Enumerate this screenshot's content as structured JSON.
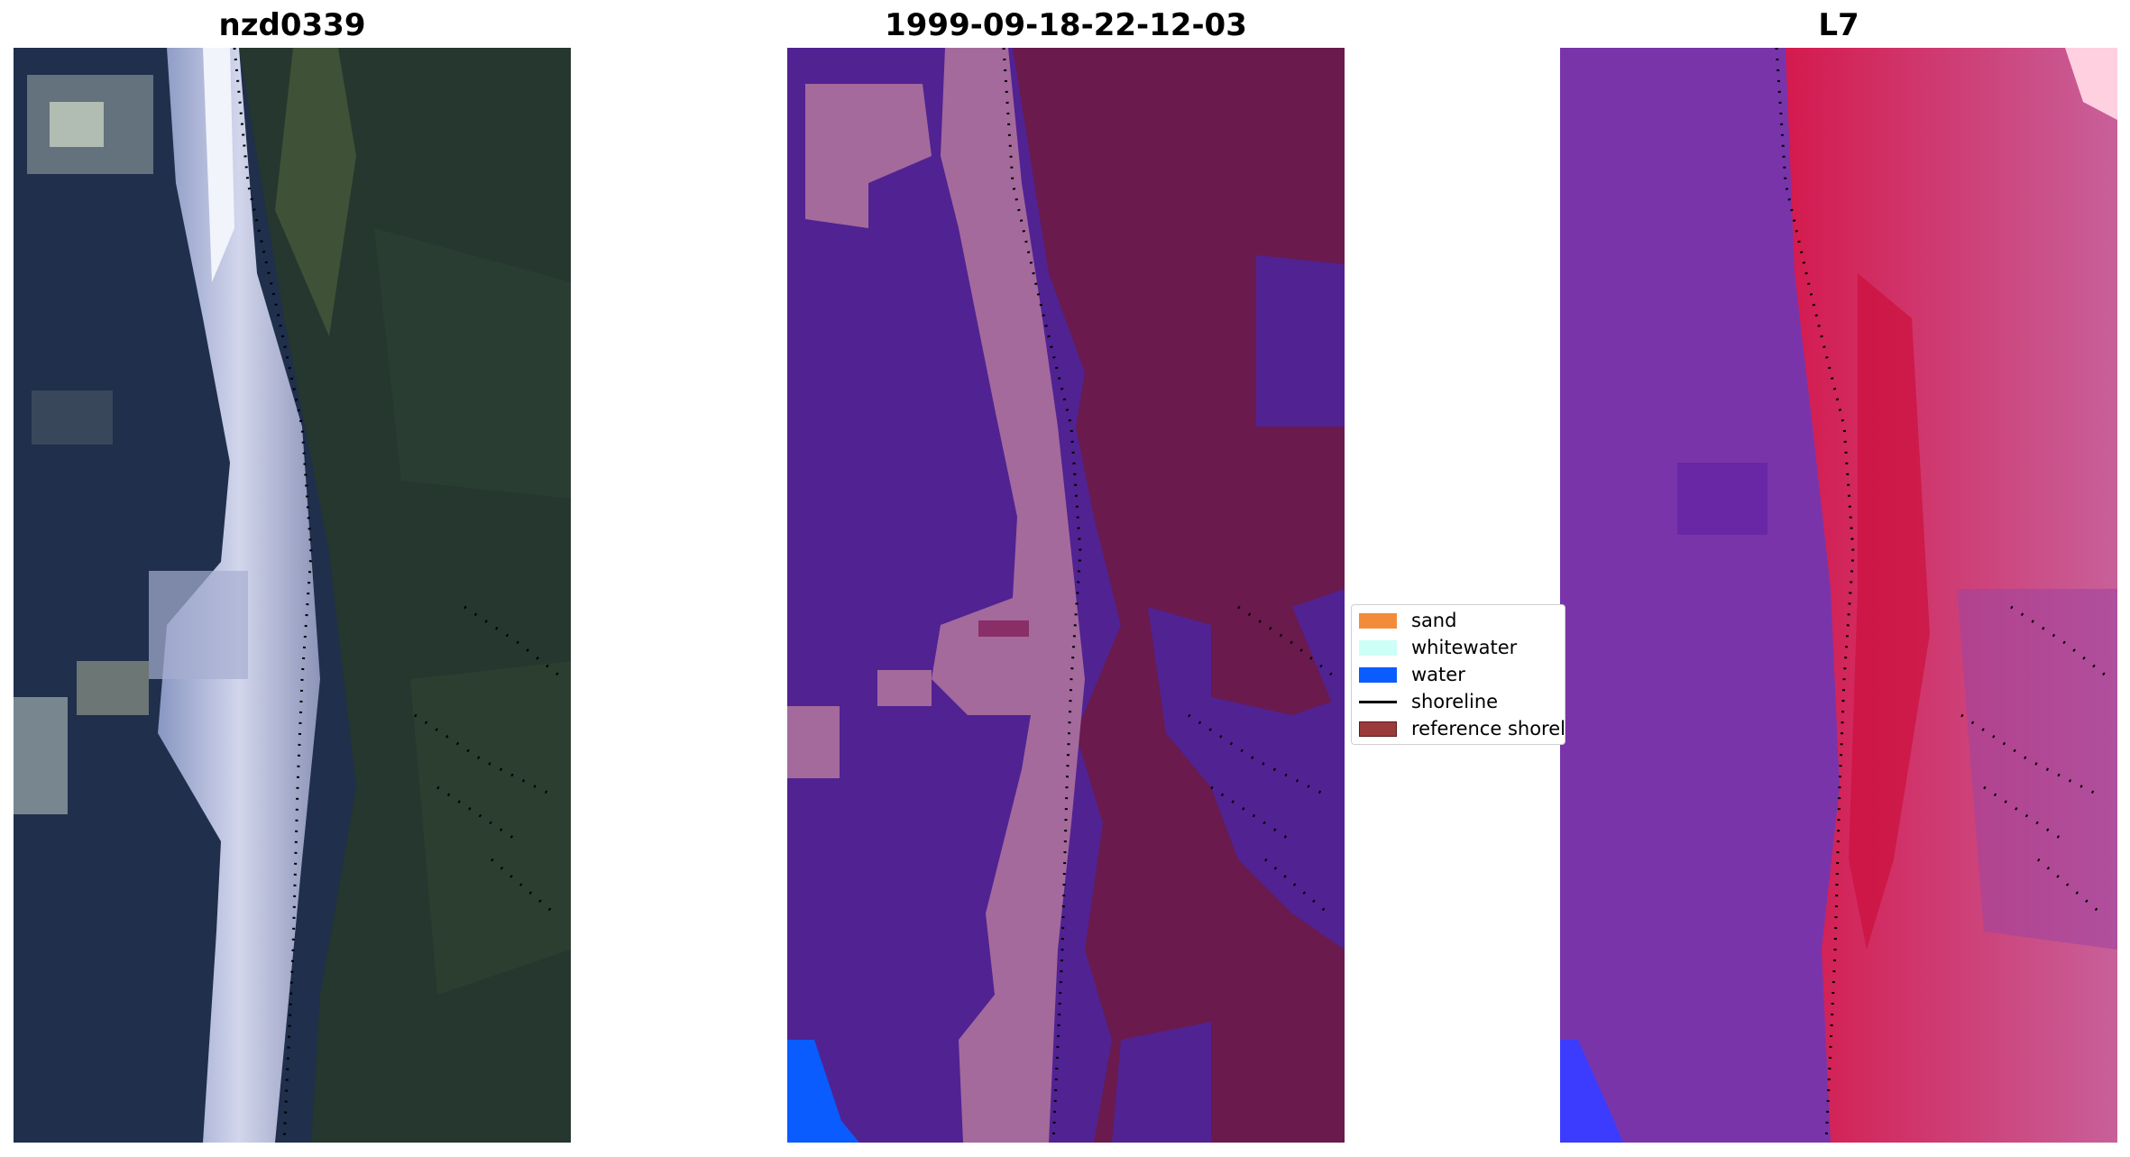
{
  "panels": [
    {
      "title": "nzd0339"
    },
    {
      "title": "1999-09-18-22-12-03"
    },
    {
      "title": "L7"
    }
  ],
  "legend": {
    "items": [
      {
        "label": "sand",
        "color": "#f28c3a",
        "kind": "patch"
      },
      {
        "label": "whitewater",
        "color": "#ccfff6",
        "kind": "patch"
      },
      {
        "label": "water",
        "color": "#0a5cff",
        "kind": "patch"
      },
      {
        "label": "shoreline",
        "color": "#000000",
        "kind": "line"
      },
      {
        "label": "reference shoreline",
        "color": "#9b3a3a",
        "kind": "patch"
      }
    ]
  },
  "colors": {
    "rgb_ocean": "#1e2e4a",
    "rgb_surf": "#c9cfe6",
    "rgb_land": "#2a3b2e",
    "class_water": "#512292",
    "class_land": "#6a1a4c",
    "class_sand_overlay": "#a46a9c",
    "class_pure_water": "#0a5cff",
    "ndwi_purple": "#7a34aa",
    "ndwi_red": "#d41a4e",
    "ndwi_pink": "#c45090"
  }
}
